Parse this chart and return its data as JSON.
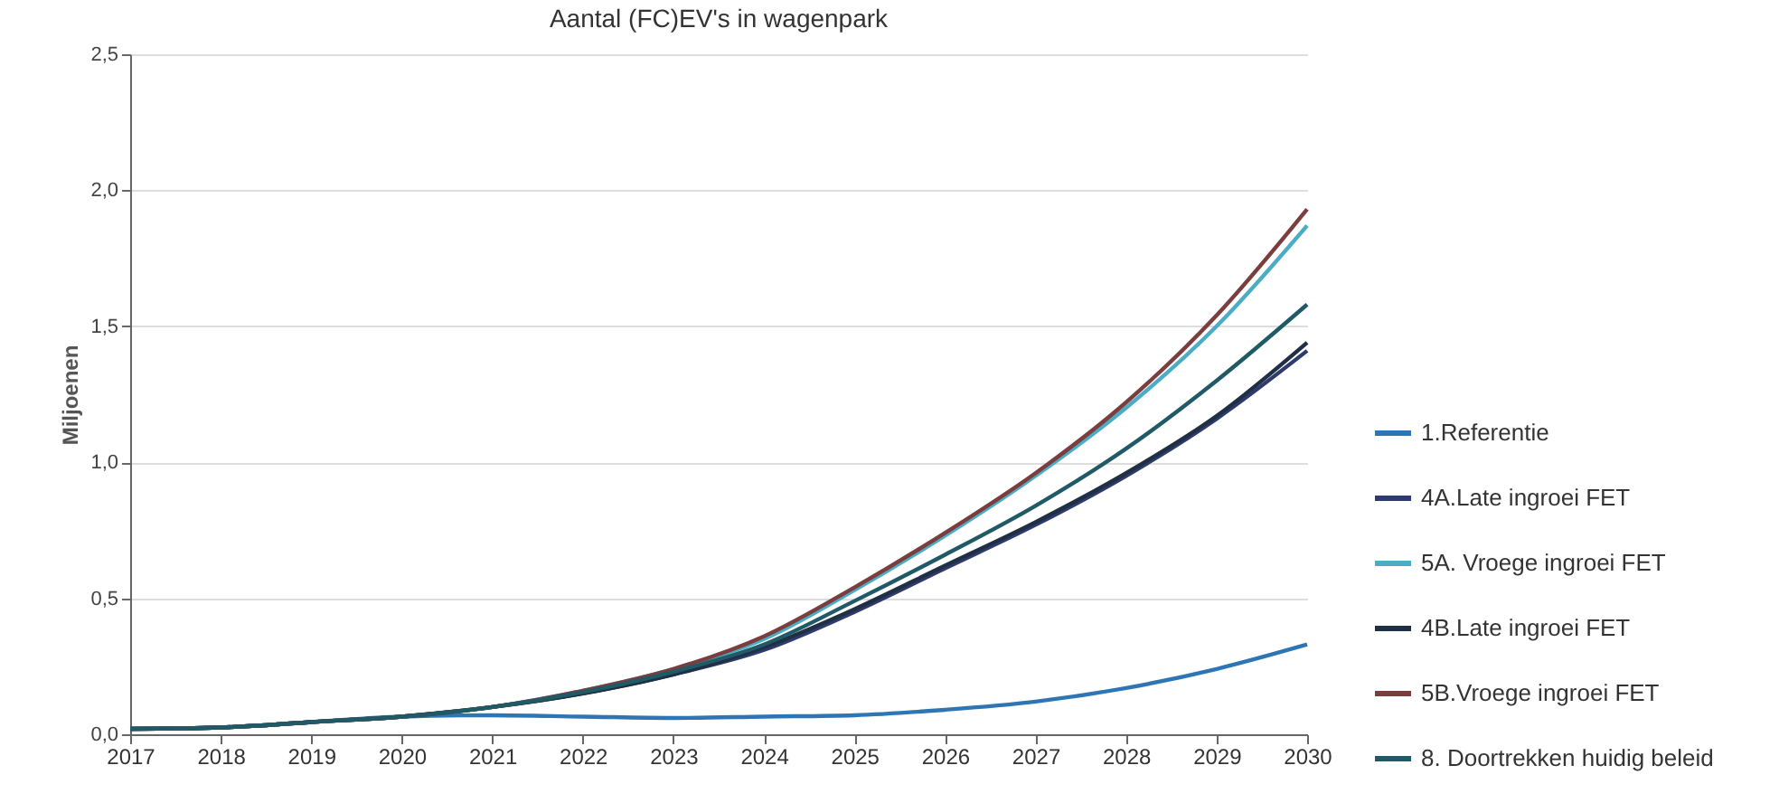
{
  "chart_data": {
    "type": "line",
    "title": "Aantal (FC)EV's in wagenpark",
    "ylabel": "Miljoenen",
    "x": [
      2017,
      2018,
      2019,
      2020,
      2021,
      2022,
      2023,
      2024,
      2025,
      2026,
      2027,
      2028,
      2029,
      2030
    ],
    "series": [
      {
        "name": "1.Referentie",
        "color": "#2e75b6",
        "values": [
          0.02,
          0.025,
          0.045,
          0.065,
          0.07,
          0.065,
          0.06,
          0.065,
          0.07,
          0.09,
          0.12,
          0.17,
          0.24,
          0.33
        ]
      },
      {
        "name": "4A.Late ingroei FET",
        "color": "#2f3a6e",
        "values": [
          0.02,
          0.025,
          0.045,
          0.065,
          0.1,
          0.15,
          0.22,
          0.31,
          0.45,
          0.61,
          0.77,
          0.95,
          1.16,
          1.41
        ]
      },
      {
        "name": "5A. Vroege ingroei FET",
        "color": "#4bacc6",
        "values": [
          0.02,
          0.025,
          0.045,
          0.065,
          0.1,
          0.16,
          0.24,
          0.35,
          0.53,
          0.73,
          0.95,
          1.2,
          1.5,
          1.87
        ]
      },
      {
        "name": "4B.Late ingroei FET",
        "color": "#1f2f44",
        "values": [
          0.02,
          0.025,
          0.045,
          0.065,
          0.1,
          0.15,
          0.22,
          0.32,
          0.46,
          0.62,
          0.78,
          0.96,
          1.17,
          1.44
        ]
      },
      {
        "name": "5B.Vroege ingroei FET",
        "color": "#7a3e3e",
        "values": [
          0.02,
          0.025,
          0.045,
          0.065,
          0.1,
          0.16,
          0.24,
          0.36,
          0.54,
          0.74,
          0.96,
          1.22,
          1.54,
          1.93
        ]
      },
      {
        "name": "8. Doortrekken huidig beleid",
        "color": "#1f5a66",
        "values": [
          0.02,
          0.025,
          0.045,
          0.065,
          0.1,
          0.155,
          0.23,
          0.33,
          0.49,
          0.66,
          0.84,
          1.05,
          1.3,
          1.58
        ]
      }
    ],
    "xlim": [
      2017,
      2030
    ],
    "xticks": [
      2017,
      2018,
      2019,
      2020,
      2021,
      2022,
      2023,
      2024,
      2025,
      2026,
      2027,
      2028,
      2029,
      2030
    ],
    "ylim": [
      0,
      2.5
    ],
    "yticks": [
      {
        "value": 0,
        "label": "0,0"
      },
      {
        "value": 0.5,
        "label": "0,5"
      },
      {
        "value": 1,
        "label": "1,0"
      },
      {
        "value": 1.5,
        "label": "1,5"
      },
      {
        "value": 2,
        "label": "2,0"
      },
      {
        "value": 2.5,
        "label": "2,5"
      }
    ],
    "grid": "y",
    "legend": "right",
    "marker": "none",
    "line_style": "solid"
  }
}
